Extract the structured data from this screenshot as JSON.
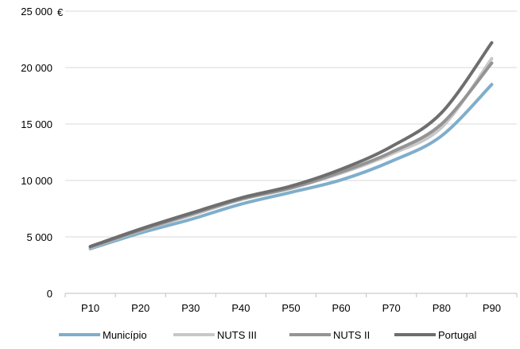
{
  "chart_data": {
    "type": "line",
    "title": "",
    "xlabel": "",
    "ylabel": "",
    "y_unit": "€",
    "categories": [
      "P10",
      "P20",
      "P30",
      "P40",
      "P50",
      "P60",
      "P70",
      "P80",
      "P90"
    ],
    "ylim": [
      0,
      25000
    ],
    "yticks": [
      0,
      5000,
      10000,
      15000,
      20000,
      25000
    ],
    "ytick_labels": [
      "0",
      "5 000",
      "10 000",
      "15 000",
      "20 000",
      "25 000"
    ],
    "grid": true,
    "legend_position": "bottom",
    "series": [
      {
        "name": "Município",
        "color": "#7FAECB",
        "values": [
          3950,
          5350,
          6550,
          7900,
          8950,
          10050,
          11700,
          13950,
          18500
        ]
      },
      {
        "name": "NUTS III",
        "color": "#C8C8C8",
        "values": [
          4050,
          5550,
          6900,
          8300,
          9300,
          10650,
          12350,
          14700,
          20800
        ]
      },
      {
        "name": "NUTS II",
        "color": "#949494",
        "values": [
          4100,
          5600,
          7000,
          8350,
          9350,
          10750,
          12500,
          15000,
          20400
        ]
      },
      {
        "name": "Portugal",
        "color": "#6E6E6E",
        "values": [
          4150,
          5700,
          7100,
          8450,
          9500,
          11000,
          13000,
          16000,
          22200
        ]
      }
    ]
  }
}
